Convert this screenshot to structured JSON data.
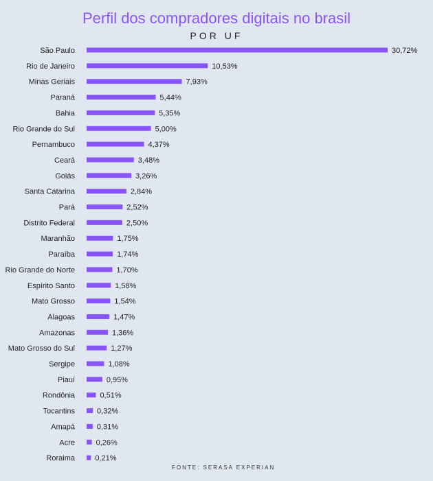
{
  "chart_data": {
    "type": "bar",
    "orientation": "horizontal",
    "title": "Perfil dos compradores digitais no brasil",
    "subtitle": "POR UF",
    "source": "FONTE: SERASA EXPERIAN",
    "bar_color": "#8755f5",
    "background": "#e1e7f0",
    "grid": false,
    "categories": [
      "São Paulo",
      "Rio de Janeiro",
      "Minas Geriais",
      "Paraná",
      "Bahia",
      "Rio Grande do Sul",
      "Pernambuco",
      "Ceará",
      "Goiás",
      "Santa Catarina",
      "Pará",
      "Distrito Federal",
      "Maranhão",
      "Paraíba",
      "Rio Grande do Norte",
      "Espírito Santo",
      "Mato Grosso",
      "Alagoas",
      "Amazonas",
      "Mato Grosso do Sul",
      "Sergipe",
      "Piauí",
      "Rondônia",
      "Tocantins",
      "Amapá",
      "Acre",
      "Roraima"
    ],
    "values": [
      30.72,
      10.53,
      7.93,
      5.44,
      5.35,
      5.0,
      4.37,
      3.48,
      3.26,
      2.84,
      2.52,
      2.5,
      1.75,
      1.74,
      1.7,
      1.58,
      1.54,
      1.47,
      1.36,
      1.27,
      1.08,
      0.95,
      0.51,
      0.32,
      0.31,
      0.26,
      0.21
    ],
    "labels": [
      "30,72%",
      "10,53%",
      "7,93%",
      "5,44%",
      "5,35%",
      "5,00%",
      "4,37%",
      "3,48%",
      "3,26%",
      "2,84%",
      "2,52%",
      "2,50%",
      "1,75%",
      "1,74%",
      "1,70%",
      "1,58%",
      "1,54%",
      "1,47%",
      "1,36%",
      "1,27%",
      "1,08%",
      "0,95%",
      "0,51%",
      "0,32%",
      "0,31%",
      "0,26%",
      "0,21%"
    ]
  }
}
